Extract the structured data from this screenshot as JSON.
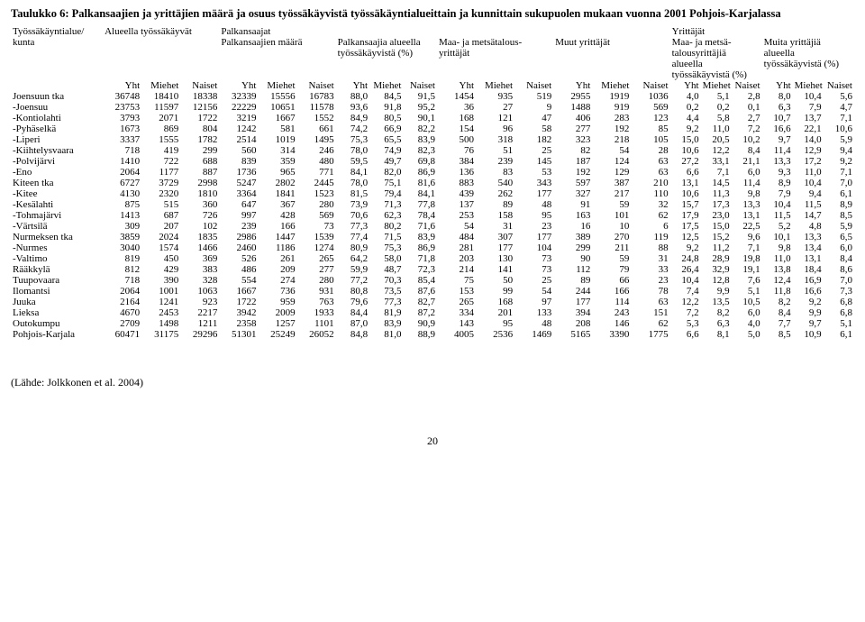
{
  "title": "Taulukko 6: Palkansaajien ja yrittäjien määrä ja osuus työssäkäyvistä työssäkäyntialueittain ja kunnittain sukupuolen mukaan vuonna 2001 Pohjois-Karjalassa",
  "header_group1_col1": "Työssäkäyntialue/",
  "header_group1_col1b": "kunta",
  "header_group1_col2": "Alueella työssäkäyvät",
  "header_group1_col3": "Palkansaajat",
  "header_group1_col4": "Yrittäjät",
  "header_group2_col3a": "Palkansaajien määrä",
  "header_group2_col3b_l1": "Palkansaajia alueella",
  "header_group2_col3b_l2": "työssäkäyvistä (%)",
  "header_group2_col4a_l1": "Maa- ja metsätalous-",
  "header_group2_col4a_l2": "yrittäjät",
  "header_group2_col4b": "Muut yrittäjät",
  "header_group2_col4c_l1": "Maa- ja metsä-",
  "header_group2_col4c_l2": "talousyrittäjiä",
  "header_group2_col4c_l3": "alueella",
  "header_group2_col4c_l4": "työssäkäyvistä (%)",
  "header_group2_col4d_l1": "Muita yrittäjiä",
  "header_group2_col4d_l2": "alueella",
  "header_group2_col4d_l3": "työssäkäyvistä (%)",
  "sub_yht": "Yht",
  "sub_miehet": "Miehet",
  "sub_naiset": "Naiset",
  "source": "(Lähde: Jolkkonen et al. 2004)",
  "pagenum": "20",
  "rows": [
    {
      "region": "Joensuun tka",
      "v": [
        "36748",
        "18410",
        "18338",
        "32339",
        "15556",
        "16783",
        "88,0",
        "84,5",
        "91,5",
        "1454",
        "935",
        "519",
        "2955",
        "1919",
        "1036",
        "4,0",
        "5,1",
        "2,8",
        "8,0",
        "10,4",
        "5,6"
      ]
    },
    {
      "region": "-Joensuu",
      "v": [
        "23753",
        "11597",
        "12156",
        "22229",
        "10651",
        "11578",
        "93,6",
        "91,8",
        "95,2",
        "36",
        "27",
        "9",
        "1488",
        "919",
        "569",
        "0,2",
        "0,2",
        "0,1",
        "6,3",
        "7,9",
        "4,7"
      ]
    },
    {
      "region": "-Kontiolahti",
      "v": [
        "3793",
        "2071",
        "1722",
        "3219",
        "1667",
        "1552",
        "84,9",
        "80,5",
        "90,1",
        "168",
        "121",
        "47",
        "406",
        "283",
        "123",
        "4,4",
        "5,8",
        "2,7",
        "10,7",
        "13,7",
        "7,1"
      ]
    },
    {
      "region": "-Pyhäselkä",
      "v": [
        "1673",
        "869",
        "804",
        "1242",
        "581",
        "661",
        "74,2",
        "66,9",
        "82,2",
        "154",
        "96",
        "58",
        "277",
        "192",
        "85",
        "9,2",
        "11,0",
        "7,2",
        "16,6",
        "22,1",
        "10,6"
      ]
    },
    {
      "region": "-Liperi",
      "v": [
        "3337",
        "1555",
        "1782",
        "2514",
        "1019",
        "1495",
        "75,3",
        "65,5",
        "83,9",
        "500",
        "318",
        "182",
        "323",
        "218",
        "105",
        "15,0",
        "20,5",
        "10,2",
        "9,7",
        "14,0",
        "5,9"
      ]
    },
    {
      "region": "-Kiihtelysvaara",
      "v": [
        "718",
        "419",
        "299",
        "560",
        "314",
        "246",
        "78,0",
        "74,9",
        "82,3",
        "76",
        "51",
        "25",
        "82",
        "54",
        "28",
        "10,6",
        "12,2",
        "8,4",
        "11,4",
        "12,9",
        "9,4"
      ]
    },
    {
      "region": "-Polvijärvi",
      "v": [
        "1410",
        "722",
        "688",
        "839",
        "359",
        "480",
        "59,5",
        "49,7",
        "69,8",
        "384",
        "239",
        "145",
        "187",
        "124",
        "63",
        "27,2",
        "33,1",
        "21,1",
        "13,3",
        "17,2",
        "9,2"
      ]
    },
    {
      "region": "-Eno",
      "v": [
        "2064",
        "1177",
        "887",
        "1736",
        "965",
        "771",
        "84,1",
        "82,0",
        "86,9",
        "136",
        "83",
        "53",
        "192",
        "129",
        "63",
        "6,6",
        "7,1",
        "6,0",
        "9,3",
        "11,0",
        "7,1"
      ]
    },
    {
      "region": "Kiteen tka",
      "v": [
        "6727",
        "3729",
        "2998",
        "5247",
        "2802",
        "2445",
        "78,0",
        "75,1",
        "81,6",
        "883",
        "540",
        "343",
        "597",
        "387",
        "210",
        "13,1",
        "14,5",
        "11,4",
        "8,9",
        "10,4",
        "7,0"
      ]
    },
    {
      "region": "-Kitee",
      "v": [
        "4130",
        "2320",
        "1810",
        "3364",
        "1841",
        "1523",
        "81,5",
        "79,4",
        "84,1",
        "439",
        "262",
        "177",
        "327",
        "217",
        "110",
        "10,6",
        "11,3",
        "9,8",
        "7,9",
        "9,4",
        "6,1"
      ]
    },
    {
      "region": "-Kesälahti",
      "v": [
        "875",
        "515",
        "360",
        "647",
        "367",
        "280",
        "73,9",
        "71,3",
        "77,8",
        "137",
        "89",
        "48",
        "91",
        "59",
        "32",
        "15,7",
        "17,3",
        "13,3",
        "10,4",
        "11,5",
        "8,9"
      ]
    },
    {
      "region": "-Tohmajärvi",
      "v": [
        "1413",
        "687",
        "726",
        "997",
        "428",
        "569",
        "70,6",
        "62,3",
        "78,4",
        "253",
        "158",
        "95",
        "163",
        "101",
        "62",
        "17,9",
        "23,0",
        "13,1",
        "11,5",
        "14,7",
        "8,5"
      ]
    },
    {
      "region": "-Värtsilä",
      "v": [
        "309",
        "207",
        "102",
        "239",
        "166",
        "73",
        "77,3",
        "80,2",
        "71,6",
        "54",
        "31",
        "23",
        "16",
        "10",
        "6",
        "17,5",
        "15,0",
        "22,5",
        "5,2",
        "4,8",
        "5,9"
      ]
    },
    {
      "region": "Nurmeksen tka",
      "v": [
        "3859",
        "2024",
        "1835",
        "2986",
        "1447",
        "1539",
        "77,4",
        "71,5",
        "83,9",
        "484",
        "307",
        "177",
        "389",
        "270",
        "119",
        "12,5",
        "15,2",
        "9,6",
        "10,1",
        "13,3",
        "6,5"
      ]
    },
    {
      "region": "-Nurmes",
      "v": [
        "3040",
        "1574",
        "1466",
        "2460",
        "1186",
        "1274",
        "80,9",
        "75,3",
        "86,9",
        "281",
        "177",
        "104",
        "299",
        "211",
        "88",
        "9,2",
        "11,2",
        "7,1",
        "9,8",
        "13,4",
        "6,0"
      ]
    },
    {
      "region": "-Valtimo",
      "v": [
        "819",
        "450",
        "369",
        "526",
        "261",
        "265",
        "64,2",
        "58,0",
        "71,8",
        "203",
        "130",
        "73",
        "90",
        "59",
        "31",
        "24,8",
        "28,9",
        "19,8",
        "11,0",
        "13,1",
        "8,4"
      ]
    },
    {
      "region": "Rääkkylä",
      "v": [
        "812",
        "429",
        "383",
        "486",
        "209",
        "277",
        "59,9",
        "48,7",
        "72,3",
        "214",
        "141",
        "73",
        "112",
        "79",
        "33",
        "26,4",
        "32,9",
        "19,1",
        "13,8",
        "18,4",
        "8,6"
      ]
    },
    {
      "region": "Tuupovaara",
      "v": [
        "718",
        "390",
        "328",
        "554",
        "274",
        "280",
        "77,2",
        "70,3",
        "85,4",
        "75",
        "50",
        "25",
        "89",
        "66",
        "23",
        "10,4",
        "12,8",
        "7,6",
        "12,4",
        "16,9",
        "7,0"
      ]
    },
    {
      "region": "Ilomantsi",
      "v": [
        "2064",
        "1001",
        "1063",
        "1667",
        "736",
        "931",
        "80,8",
        "73,5",
        "87,6",
        "153",
        "99",
        "54",
        "244",
        "166",
        "78",
        "7,4",
        "9,9",
        "5,1",
        "11,8",
        "16,6",
        "7,3"
      ]
    },
    {
      "region": "Juuka",
      "v": [
        "2164",
        "1241",
        "923",
        "1722",
        "959",
        "763",
        "79,6",
        "77,3",
        "82,7",
        "265",
        "168",
        "97",
        "177",
        "114",
        "63",
        "12,2",
        "13,5",
        "10,5",
        "8,2",
        "9,2",
        "6,8"
      ]
    },
    {
      "region": "Lieksa",
      "v": [
        "4670",
        "2453",
        "2217",
        "3942",
        "2009",
        "1933",
        "84,4",
        "81,9",
        "87,2",
        "334",
        "201",
        "133",
        "394",
        "243",
        "151",
        "7,2",
        "8,2",
        "6,0",
        "8,4",
        "9,9",
        "6,8"
      ]
    },
    {
      "region": "Outokumpu",
      "v": [
        "2709",
        "1498",
        "1211",
        "2358",
        "1257",
        "1101",
        "87,0",
        "83,9",
        "90,9",
        "143",
        "95",
        "48",
        "208",
        "146",
        "62",
        "5,3",
        "6,3",
        "4,0",
        "7,7",
        "9,7",
        "5,1"
      ]
    },
    {
      "region": "Pohjois-Karjala",
      "v": [
        "60471",
        "31175",
        "29296",
        "51301",
        "25249",
        "26052",
        "84,8",
        "81,0",
        "88,9",
        "4005",
        "2536",
        "1469",
        "5165",
        "3390",
        "1775",
        "6,6",
        "8,1",
        "5,0",
        "8,5",
        "10,9",
        "6,1"
      ]
    }
  ]
}
